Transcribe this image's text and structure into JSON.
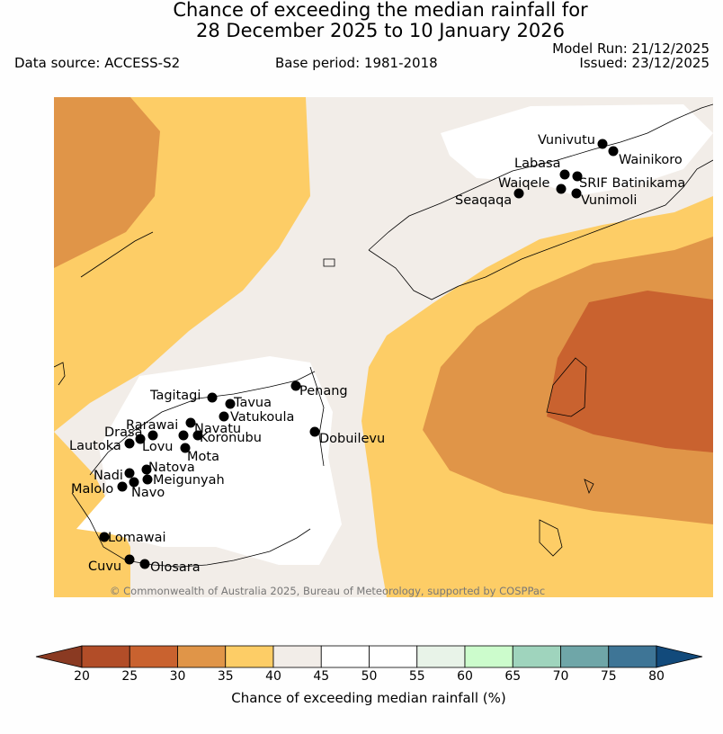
{
  "header": {
    "title_line1": "Chance of exceeding the median rainfall for",
    "title_line2": "28 December 2025 to 10 January 2026",
    "data_source": "Data source: ACCESS-S2",
    "base_period": "Base period: 1981-2018",
    "model_run": "Model Run: 21/12/2025",
    "issued": "Issued: 23/12/2025"
  },
  "map": {
    "copyright": "© Commonwealth of Australia 2025, Bureau of Meteorology, supported by COSPPac",
    "stations": [
      {
        "name": "Vunivutu"
      },
      {
        "name": "Wainikoro"
      },
      {
        "name": "Labasa"
      },
      {
        "name": "SRIF Batinikama"
      },
      {
        "name": "Waiqele"
      },
      {
        "name": "Vunimoli"
      },
      {
        "name": "Seaqaqa"
      },
      {
        "name": "Penang"
      },
      {
        "name": "Tagitagi"
      },
      {
        "name": "Tavua"
      },
      {
        "name": "Vatukoula"
      },
      {
        "name": "Dobuilevu"
      },
      {
        "name": "Rarawai"
      },
      {
        "name": "Navatu"
      },
      {
        "name": "Drasa"
      },
      {
        "name": "Koronubu"
      },
      {
        "name": "Lautoka"
      },
      {
        "name": "Lovu"
      },
      {
        "name": "Mota"
      },
      {
        "name": "Natova"
      },
      {
        "name": "Nadi"
      },
      {
        "name": "Meigunyah"
      },
      {
        "name": "Malolo"
      },
      {
        "name": "Navo"
      },
      {
        "name": "Lomawai"
      },
      {
        "name": "Cuvu"
      },
      {
        "name": "Olosara"
      }
    ]
  },
  "colorbar": {
    "label": "Chance of exceeding median rainfall (%)",
    "ticks": [
      "20",
      "25",
      "30",
      "35",
      "40",
      "45",
      "50",
      "55",
      "60",
      "65",
      "70",
      "75",
      "80"
    ],
    "colors": [
      "#b24d28",
      "#c9622f",
      "#e09548",
      "#fdcd66",
      "#f2ede8",
      "#ffffff",
      "#ffffff",
      "#e8f3e8",
      "#ccfccc",
      "#9fd4bd",
      "#6fa6a8",
      "#3e7596"
    ],
    "under_color": "#8a3a22",
    "over_color": "#124a7b"
  }
}
